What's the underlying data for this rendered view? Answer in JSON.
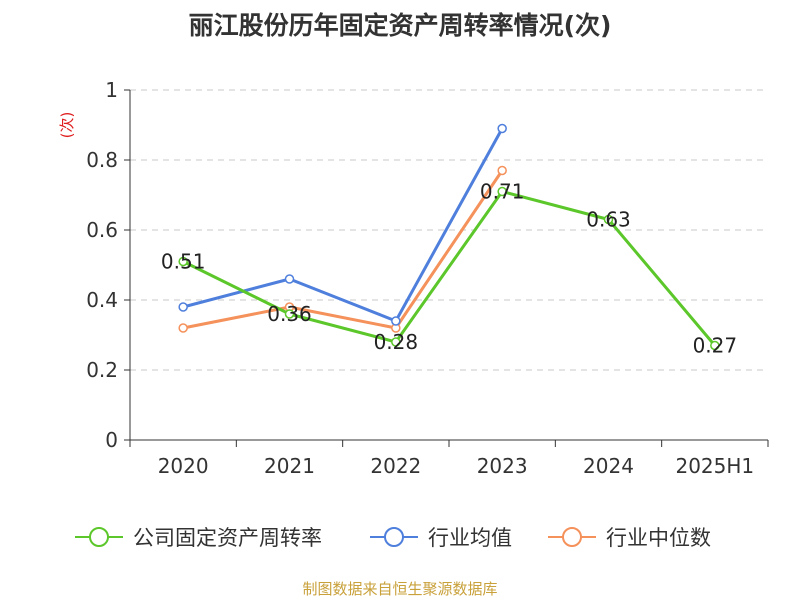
{
  "chart_data": {
    "type": "line",
    "title": "丽江股份历年固定资产周转率情况(次)",
    "ylabel": "(次)",
    "xlabel": "",
    "categories": [
      "2020",
      "2021",
      "2022",
      "2023",
      "2024",
      "2025H1"
    ],
    "ylim": [
      0,
      1
    ],
    "yticks": [
      "0",
      "0.2",
      "0.4",
      "0.6",
      "0.8",
      "1"
    ],
    "grid": true,
    "legend_position": "bottom",
    "series": [
      {
        "name": "公司固定资产周转率",
        "color": "#5cc72a",
        "values": [
          0.51,
          0.36,
          0.28,
          0.71,
          0.63,
          0.27
        ],
        "labels": [
          "0.51",
          "0.36",
          "0.28",
          "0.71",
          "0.63",
          "0.27"
        ]
      },
      {
        "name": "行业均值",
        "color": "#4f7fdc",
        "values": [
          0.38,
          0.46,
          0.34,
          0.89,
          null,
          null
        ]
      },
      {
        "name": "行业中位数",
        "color": "#f5915a",
        "values": [
          0.32,
          0.38,
          0.32,
          0.77,
          null,
          null
        ]
      }
    ]
  },
  "footer": {
    "source": "制图数据来自恒生聚源数据库"
  }
}
